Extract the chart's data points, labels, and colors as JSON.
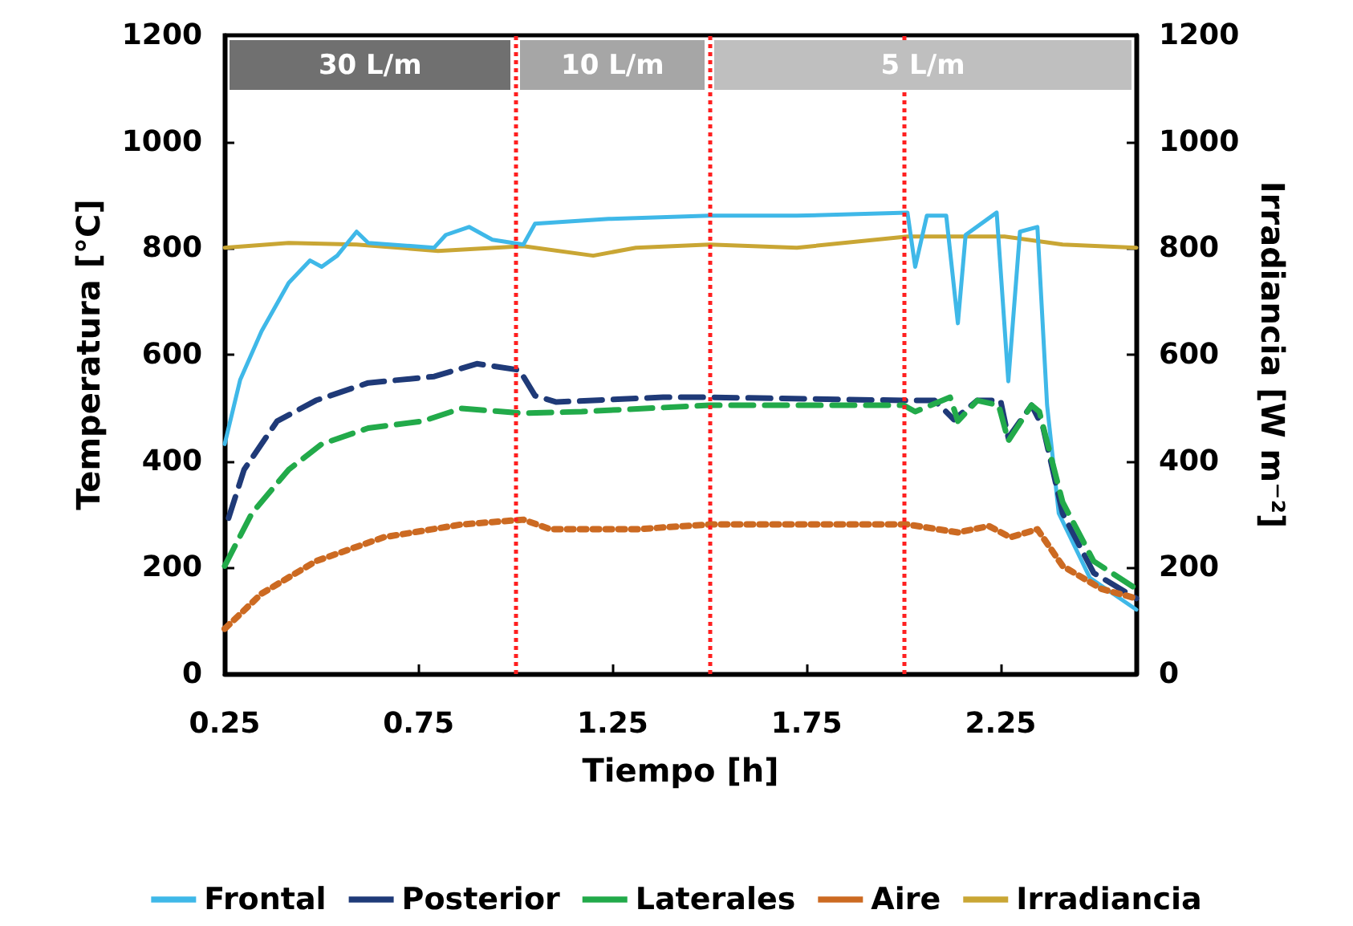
{
  "chart_data": {
    "type": "line",
    "xlabel": "Tiempo [h]",
    "ylabel": "Temperatura [°C]",
    "y2label": "Irradiancia [W m⁻²]",
    "xlim": [
      0.25,
      2.6
    ],
    "xticks": [
      0.25,
      0.75,
      1.25,
      1.75,
      2.25
    ],
    "ylim": [
      0,
      1200
    ],
    "yticks": [
      0,
      200,
      400,
      600,
      800,
      1000,
      1200
    ],
    "y2lim": [
      0,
      1200
    ],
    "y2ticks": [
      0,
      200,
      400,
      600,
      800,
      1000,
      1200
    ],
    "grid": false,
    "legend": "bottom",
    "marker": "none",
    "series": [
      {
        "name": "Frontal",
        "color": "#3fb8e8",
        "line_style": "solid",
        "x": [
          0.25,
          0.29,
          0.345,
          0.415,
          0.47,
          0.5,
          0.54,
          0.59,
          0.62,
          0.79,
          0.82,
          0.88,
          0.94,
          1.02,
          1.05,
          1.24,
          1.5,
          1.725,
          2.01,
          2.03,
          2.06,
          2.11,
          2.14,
          2.16,
          2.24,
          2.27,
          2.3,
          2.345,
          2.37,
          2.4,
          2.48,
          2.6
        ],
        "values": [
          432,
          553,
          644,
          735,
          777,
          765,
          786,
          831,
          810,
          801,
          825,
          840,
          816,
          807,
          846,
          855,
          861,
          861,
          867,
          765,
          861,
          861,
          659,
          825,
          867,
          550,
          831,
          840,
          505,
          302,
          181,
          121
        ]
      },
      {
        "name": "Posterior",
        "color": "#1f3a78",
        "line_style": "dashed",
        "x": [
          0.26,
          0.3,
          0.385,
          0.485,
          0.62,
          0.79,
          0.9,
          1.01,
          1.05,
          1.105,
          1.38,
          1.5,
          2.0,
          2.08,
          2.13,
          2.19,
          2.25,
          2.27,
          2.33,
          2.36,
          2.41,
          2.49,
          2.6
        ],
        "values": [
          293,
          384,
          475,
          514,
          547,
          559,
          583,
          571,
          523,
          511,
          520,
          520,
          514,
          514,
          478,
          514,
          514,
          444,
          505,
          462,
          302,
          190,
          142
        ]
      },
      {
        "name": "Laterales",
        "color": "#22aa4a",
        "line_style": "dashed",
        "x": [
          0.25,
          0.32,
          0.415,
          0.5,
          0.62,
          0.76,
          0.86,
          1.02,
          1.17,
          1.5,
          2.0,
          2.03,
          2.12,
          2.14,
          2.19,
          2.245,
          2.27,
          2.33,
          2.35,
          2.41,
          2.49,
          2.6
        ],
        "values": [
          203,
          302,
          384,
          432,
          462,
          475,
          499,
          490,
          493,
          505,
          505,
          493,
          520,
          475,
          514,
          505,
          438,
          505,
          493,
          323,
          212,
          160
        ]
      },
      {
        "name": "Aire",
        "color": "#cc6a22",
        "line_style": "dotted",
        "x": [
          0.25,
          0.345,
          0.485,
          0.66,
          0.86,
          1.02,
          1.09,
          1.31,
          1.5,
          2.01,
          2.14,
          2.22,
          2.275,
          2.345,
          2.41,
          2.51,
          2.6
        ],
        "values": [
          85,
          151,
          212,
          257,
          281,
          290,
          272,
          272,
          281,
          281,
          266,
          278,
          257,
          272,
          203,
          160,
          142
        ]
      },
      {
        "name": "Irradiancia",
        "color": "#c9a634",
        "line_style": "solid",
        "axis": "y2",
        "x": [
          0.25,
          0.415,
          0.59,
          0.8,
          1.02,
          1.2,
          1.31,
          1.5,
          1.725,
          2.01,
          2.26,
          2.41,
          2.6
        ],
        "values": [
          801,
          810,
          807,
          795,
          804,
          786,
          801,
          807,
          801,
          822,
          822,
          807,
          801
        ]
      }
    ],
    "ref_lines": [
      {
        "axis": "x",
        "value": 1.0,
        "color": "#ff2020",
        "line_style": "dotted"
      },
      {
        "axis": "x",
        "value": 1.5,
        "color": "#ff2020",
        "line_style": "dotted"
      },
      {
        "axis": "x",
        "value": 2.0,
        "color": "#ff2020",
        "line_style": "dotted"
      }
    ],
    "annotations": [
      "30 L/m",
      "10 L/m",
      "5 L/m"
    ]
  }
}
